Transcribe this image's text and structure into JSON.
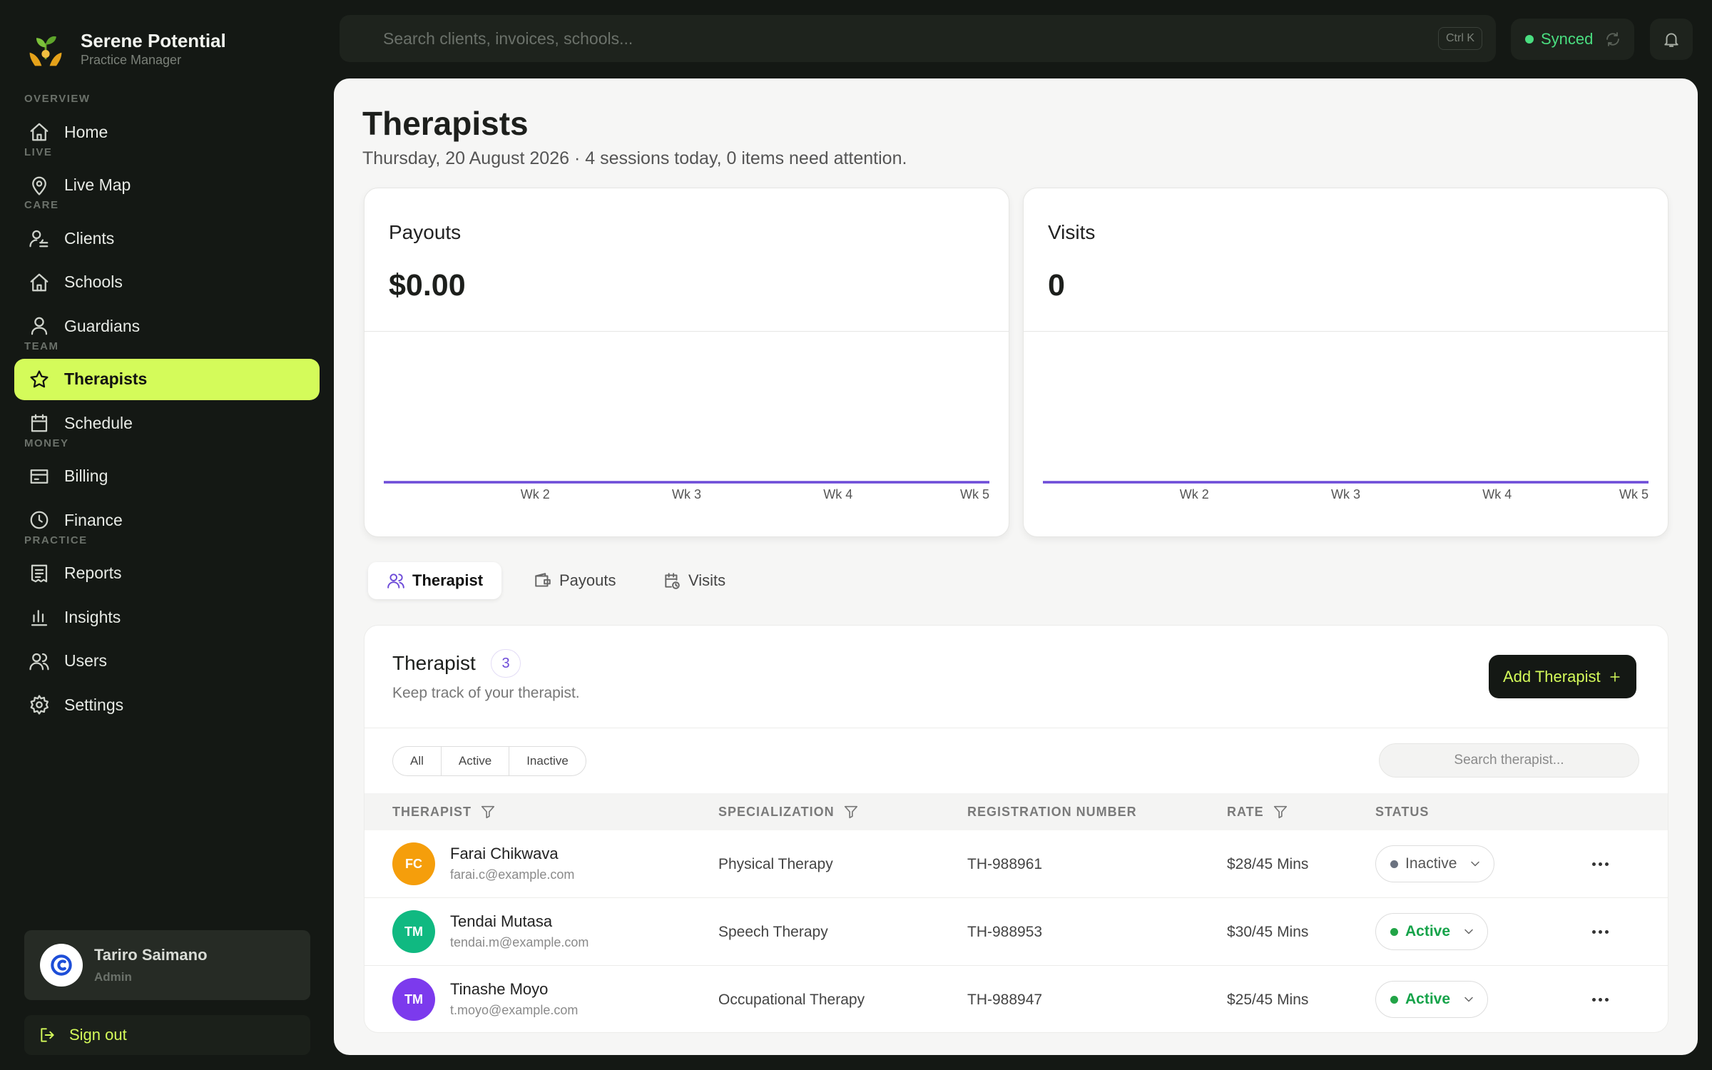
{
  "brand": {
    "name": "Serene Potential",
    "tagline": "Practice Manager"
  },
  "nav": [
    {
      "section": "OVERVIEW",
      "items": [
        {
          "label": "Home"
        }
      ]
    },
    {
      "section": "LIVE",
      "items": [
        {
          "label": "Live Map"
        }
      ]
    },
    {
      "section": "CARE",
      "items": [
        {
          "label": "Clients"
        },
        {
          "label": "Schools"
        },
        {
          "label": "Guardians"
        }
      ]
    },
    {
      "section": "TEAM",
      "items": [
        {
          "label": "Therapists",
          "active": true
        },
        {
          "label": "Schedule"
        }
      ]
    },
    {
      "section": "MONEY",
      "items": [
        {
          "label": "Billing"
        },
        {
          "label": "Finance"
        }
      ]
    },
    {
      "section": "PRACTICE",
      "items": [
        {
          "label": "Reports"
        },
        {
          "label": "Insights"
        },
        {
          "label": "Users"
        },
        {
          "label": "Settings"
        }
      ]
    }
  ],
  "user": {
    "name": "Tariro Saimano",
    "role": "Admin"
  },
  "sign_out": "Sign out",
  "search": {
    "placeholder": "Search clients, invoices, schools...",
    "shortcut": "Ctrl K"
  },
  "sync_status": "Synced",
  "page": {
    "title": "Therapists",
    "subtitle": "Thursday, 20 August 2026 · 4 sessions today, 0 items need attention."
  },
  "cards": [
    {
      "title": "Payouts",
      "value": "$0.00",
      "chart": {
        "type": "line",
        "categories": [
          null,
          "Wk 2",
          "Wk 3",
          "Wk 4",
          "Wk 5"
        ],
        "values": [
          0,
          0,
          0,
          0,
          0
        ],
        "color": "#6d4bd8"
      }
    },
    {
      "title": "Visits",
      "value": "0",
      "chart": {
        "type": "line",
        "categories": [
          null,
          "Wk 2",
          "Wk 3",
          "Wk 4",
          "Wk 5"
        ],
        "values": [
          0,
          0,
          0,
          0,
          0
        ],
        "color": "#6d4bd8"
      }
    }
  ],
  "tabs": [
    {
      "label": "Therapist",
      "active": true
    },
    {
      "label": "Payouts"
    },
    {
      "label": "Visits"
    }
  ],
  "table": {
    "title": "Therapist",
    "count": 3,
    "subtitle": "Keep track of your therapist.",
    "add_button": "Add Therapist",
    "filters": [
      "All",
      "Active",
      "Inactive"
    ],
    "search_placeholder": "Search therapist...",
    "columns": [
      {
        "label": "THERAPIST",
        "filterable": true
      },
      {
        "label": "SPECIALIZATION",
        "filterable": true
      },
      {
        "label": "REGISTRATION NUMBER"
      },
      {
        "label": "RATE",
        "filterable": true
      },
      {
        "label": "STATUS"
      }
    ],
    "rows": [
      {
        "initials": "FC",
        "avatar_color": "#f59e0b",
        "name": "Farai Chikwava",
        "email": "farai.c@example.com",
        "specialization": "Physical Therapy",
        "registration": "TH-988961",
        "rate": "$28/45 Mins",
        "status": "Inactive"
      },
      {
        "initials": "TM",
        "avatar_color": "#10b981",
        "name": "Tendai Mutasa",
        "email": "tendai.m@example.com",
        "specialization": "Speech Therapy",
        "registration": "TH-988953",
        "rate": "$30/45 Mins",
        "status": "Active"
      },
      {
        "initials": "TM",
        "avatar_color": "#7c3aed",
        "name": "Tinashe Moyo",
        "email": "t.moyo@example.com",
        "specialization": "Occupational Therapy",
        "registration": "TH-988947",
        "rate": "$25/45 Mins",
        "status": "Active"
      }
    ]
  }
}
